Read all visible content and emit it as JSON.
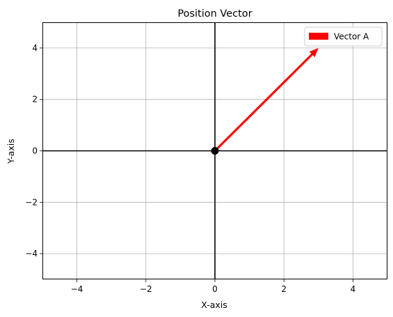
{
  "chart_data": {
    "type": "vector",
    "title": "Position Vector",
    "xlabel": "X-axis",
    "ylabel": "Y-axis",
    "xlim": [
      -5,
      5
    ],
    "ylim": [
      -5,
      5
    ],
    "xticks": [
      -4,
      -2,
      0,
      2,
      4
    ],
    "yticks": [
      -4,
      -2,
      0,
      2,
      4
    ],
    "xtick_labels": [
      "−4",
      "−2",
      "0",
      "2",
      "4"
    ],
    "ytick_labels": [
      "−4",
      "−2",
      "0",
      "2",
      "4"
    ],
    "grid": true,
    "legend_position": "top-right",
    "origin": [
      0,
      0
    ],
    "vectors": [
      {
        "name": "Vector A",
        "start": [
          0,
          0
        ],
        "end": [
          3,
          4
        ],
        "color": "#ff0000"
      }
    ],
    "axis_line_color": "#000000",
    "origin_marker_color": "#000000"
  }
}
